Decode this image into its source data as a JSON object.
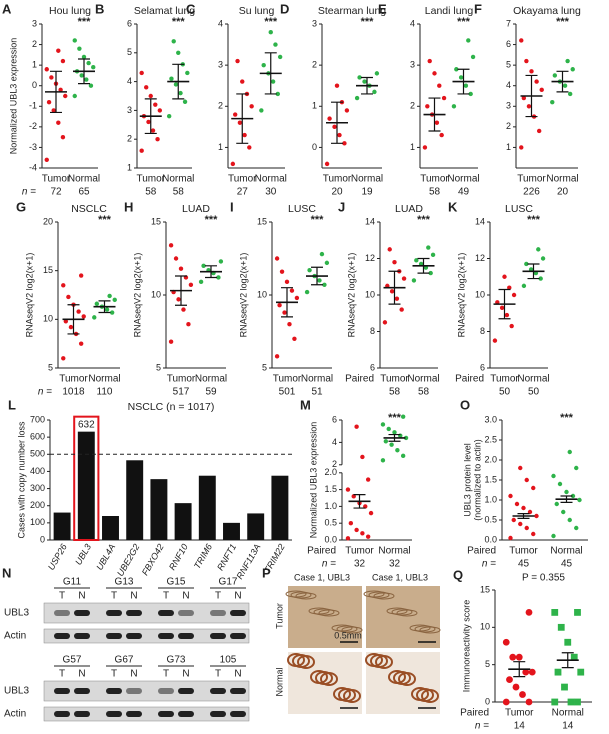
{
  "chart_data": [
    {
      "type": "dotplot",
      "panel": "A",
      "title": "Hou lung",
      "ylabel": "Normalized UBL3 expression",
      "ylim": [
        -4,
        3
      ],
      "yticks": [
        -4,
        -3,
        -2,
        -1,
        0,
        1,
        2,
        3
      ],
      "significance": "***",
      "n_prefix": "n =",
      "groups": [
        {
          "name": "Tumor",
          "color": "#e3141c",
          "n": 72,
          "mean": -0.3,
          "error": 1.0,
          "values": [
            -3.6,
            -2.5,
            -1.8,
            -1.2,
            -0.8,
            -0.5,
            -0.2,
            0.1,
            0.4,
            0.8,
            1.2,
            1.7
          ]
        },
        {
          "name": "Normal",
          "color": "#2eb34a",
          "n": 65,
          "mean": 0.7,
          "error": 0.6,
          "values": [
            -0.5,
            0,
            0.3,
            0.5,
            0.7,
            0.9,
            1.1,
            1.4,
            1.8,
            2.2
          ]
        }
      ]
    },
    {
      "type": "dotplot",
      "panel": "B",
      "title": "Selamat lung",
      "ylim": [
        1,
        6
      ],
      "yticks": [
        1,
        2,
        3,
        4,
        5,
        6
      ],
      "significance": "***",
      "groups": [
        {
          "name": "Tumor",
          "color": "#e3141c",
          "n": 58,
          "mean": 2.8,
          "error": 0.6,
          "values": [
            1.6,
            2,
            2.3,
            2.6,
            2.8,
            3,
            3.2,
            3.5,
            3.8,
            4.3
          ]
        },
        {
          "name": "Normal",
          "color": "#2eb34a",
          "n": 58,
          "mean": 4.0,
          "error": 0.6,
          "values": [
            2.8,
            3.3,
            3.6,
            3.9,
            4.1,
            4.3,
            4.6,
            5,
            5.4
          ]
        }
      ]
    },
    {
      "type": "dotplot",
      "panel": "C",
      "title": "Su lung",
      "ylim": [
        0.5,
        4
      ],
      "yticks": [
        1,
        2,
        3,
        4
      ],
      "significance": "***",
      "groups": [
        {
          "name": "Tumor",
          "color": "#e3141c",
          "n": 27,
          "mean": 1.7,
          "error": 0.6,
          "values": [
            0.6,
            1,
            1.3,
            1.6,
            1.8,
            2,
            2.3,
            2.6,
            3.1
          ]
        },
        {
          "name": "Normal",
          "color": "#2eb34a",
          "n": 30,
          "mean": 2.8,
          "error": 0.5,
          "values": [
            1.9,
            2.3,
            2.6,
            2.8,
            3,
            3.2,
            3.5,
            3.8
          ]
        }
      ]
    },
    {
      "type": "dotplot",
      "panel": "D",
      "title": "Stearman lung",
      "ylim": [
        -0.5,
        3
      ],
      "yticks": [
        0,
        1,
        2,
        3
      ],
      "significance": "***",
      "groups": [
        {
          "name": "Tumor",
          "color": "#e3141c",
          "n": 20,
          "mean": 0.6,
          "error": 0.5,
          "values": [
            -0.4,
            0.1,
            0.3,
            0.5,
            0.7,
            0.9,
            1.1,
            1.5
          ]
        },
        {
          "name": "Normal",
          "color": "#2eb34a",
          "n": 19,
          "mean": 1.5,
          "error": 0.2,
          "values": [
            1.2,
            1.35,
            1.5,
            1.6,
            1.7,
            1.8
          ]
        }
      ]
    },
    {
      "type": "dotplot",
      "panel": "E",
      "title": "Landi lung",
      "ylim": [
        0.5,
        4
      ],
      "yticks": [
        1,
        2,
        3,
        4
      ],
      "significance": "***",
      "groups": [
        {
          "name": "Tumor",
          "color": "#e3141c",
          "n": 58,
          "mean": 1.8,
          "error": 0.4,
          "values": [
            1,
            1.3,
            1.6,
            1.8,
            2,
            2.2,
            2.5,
            2.8,
            3.1
          ]
        },
        {
          "name": "Normal",
          "color": "#2eb34a",
          "n": 49,
          "mean": 2.6,
          "error": 0.3,
          "values": [
            2,
            2.3,
            2.5,
            2.7,
            2.9,
            3.2,
            3.6
          ]
        }
      ]
    },
    {
      "type": "dotplot",
      "panel": "F",
      "title": "Okayama lung",
      "ylim": [
        0,
        7
      ],
      "yticks": [
        1,
        2,
        3,
        4,
        5,
        6,
        7
      ],
      "significance": "***",
      "groups": [
        {
          "name": "Tumor",
          "color": "#e3141c",
          "n": 226,
          "mean": 3.5,
          "error": 1.0,
          "values": [
            1,
            1.8,
            2.5,
            3,
            3.4,
            3.8,
            4.2,
            4.7,
            5.2,
            6.2
          ]
        },
        {
          "name": "Normal",
          "color": "#2eb34a",
          "n": 20,
          "mean": 4.2,
          "error": 0.5,
          "values": [
            3.2,
            3.6,
            4,
            4.2,
            4.5,
            4.8,
            5.2
          ]
        }
      ]
    },
    {
      "type": "dotplot",
      "panel": "G",
      "title": "NSCLC",
      "ylabel": "RNAseqV2 log2(x+1)",
      "ylim": [
        5,
        20
      ],
      "yticks": [
        5,
        10,
        15,
        20
      ],
      "significance": "***",
      "n_prefix": "n =",
      "groups": [
        {
          "name": "Tumor",
          "color": "#e3141c",
          "n": 1018,
          "mean": 10.0,
          "error": 1.5,
          "values": [
            6,
            7.5,
            8.5,
            9.2,
            9.8,
            10.3,
            10.8,
            11.5,
            12.3,
            13.5,
            14.5
          ]
        },
        {
          "name": "Normal",
          "color": "#2eb34a",
          "n": 110,
          "mean": 11.3,
          "error": 0.6,
          "values": [
            10.2,
            10.7,
            11,
            11.3,
            11.6,
            12,
            12.4
          ]
        }
      ]
    },
    {
      "type": "dotplot",
      "panel": "H",
      "title": "LUAD",
      "ylabel": "RNAseqV2 log2(x+1)",
      "ylim": [
        5,
        15
      ],
      "yticks": [
        5,
        10,
        15
      ],
      "significance": "***",
      "groups": [
        {
          "name": "Tumor",
          "color": "#e3141c",
          "n": 517,
          "mean": 10.3,
          "error": 1.0,
          "values": [
            6.8,
            8,
            9,
            9.7,
            10.2,
            10.7,
            11.2,
            11.8,
            12.5,
            13.4
          ]
        },
        {
          "name": "Normal",
          "color": "#2eb34a",
          "n": 59,
          "mean": 11.6,
          "error": 0.4,
          "values": [
            10.9,
            11.2,
            11.5,
            11.7,
            12,
            12.3
          ]
        }
      ]
    },
    {
      "type": "dotplot",
      "panel": "I",
      "title": "LUSC",
      "ylabel": "RNAseqV2 log2(x+1)",
      "ylim": [
        5,
        15
      ],
      "yticks": [
        5,
        10,
        15
      ],
      "significance": "***",
      "groups": [
        {
          "name": "Tumor",
          "color": "#e3141c",
          "n": 501,
          "mean": 9.5,
          "error": 1.0,
          "values": [
            5.8,
            7,
            8,
            8.8,
            9.3,
            9.8,
            10.3,
            10.9,
            11.6,
            12.5
          ]
        },
        {
          "name": "Normal",
          "color": "#2eb34a",
          "n": 51,
          "mean": 11.3,
          "error": 0.6,
          "values": [
            10.2,
            10.7,
            11,
            11.3,
            11.7,
            12.2,
            12.8
          ]
        }
      ]
    },
    {
      "type": "dotplot",
      "panel": "J",
      "title": "LUAD",
      "ylabel": "RNAseqV2 log2(x+1)",
      "ylim": [
        6,
        14
      ],
      "yticks": [
        6,
        8,
        10,
        12,
        14
      ],
      "significance": "***",
      "paired_label": "Paired",
      "groups": [
        {
          "name": "Tumor",
          "color": "#e3141c",
          "n": 58,
          "mean": 10.4,
          "error": 0.9,
          "values": [
            8.5,
            9.2,
            9.8,
            10.2,
            10.5,
            10.9,
            11.3,
            11.8,
            12.5
          ]
        },
        {
          "name": "Normal",
          "color": "#2eb34a",
          "n": 58,
          "mean": 11.6,
          "error": 0.4,
          "values": [
            10.8,
            11.2,
            11.5,
            11.7,
            11.9,
            12.2,
            12.6
          ]
        }
      ]
    },
    {
      "type": "dotplot",
      "panel": "K",
      "title": "LUSC",
      "ylabel": "RNAseqV2 log2(x+1)",
      "ylim": [
        6,
        14
      ],
      "yticks": [
        6,
        8,
        10,
        12,
        14
      ],
      "significance": "***",
      "paired_label": "Paired",
      "groups": [
        {
          "name": "Tumor",
          "color": "#e3141c",
          "n": 50,
          "mean": 9.5,
          "error": 0.8,
          "values": [
            7.5,
            8.3,
            8.9,
            9.3,
            9.6,
            10,
            10.4,
            11
          ]
        },
        {
          "name": "Normal",
          "color": "#2eb34a",
          "n": 50,
          "mean": 11.3,
          "error": 0.4,
          "values": [
            10.5,
            10.9,
            11.2,
            11.4,
            11.7,
            12,
            12.5
          ]
        }
      ]
    },
    {
      "type": "bar",
      "panel": "L",
      "title": "NSCLC (n = 1017)",
      "ylabel": "Cases with copy number loss",
      "ylim": [
        0,
        700
      ],
      "yticks": [
        0,
        100,
        200,
        300,
        400,
        500,
        600,
        700
      ],
      "color": "#111111",
      "categories": [
        "USP26",
        "UBL3",
        "UBL4A",
        "UBE2G2",
        "FBXO42",
        "RNF10",
        "TRIM6",
        "RNFT1",
        "RNF113A",
        "TRIM22"
      ],
      "values": [
        160,
        632,
        140,
        465,
        355,
        215,
        375,
        100,
        155,
        375
      ],
      "value_labels": [
        null,
        "632",
        null,
        null,
        null,
        null,
        null,
        null,
        null,
        null
      ],
      "highlight_index": 1,
      "highlight_color": "#e3141c",
      "reference_line": 500
    },
    {
      "type": "dotplot",
      "panel": "M",
      "ylabel": "Normalized UBL3 expression",
      "significance": "***",
      "n_prefix": "n =",
      "paired_label": "Paired",
      "y_segments": [
        {
          "ylim": [
            0,
            2
          ],
          "yticks": [
            {
              "value": 0,
              "label": "0.0"
            },
            0.5,
            {
              "value": 1,
              "label": "1.0"
            },
            1.5,
            {
              "value": 2,
              "label": "2.0"
            }
          ]
        },
        {
          "ylim": [
            2,
            6
          ],
          "yticks": [
            2,
            4,
            6
          ]
        }
      ],
      "groups": [
        {
          "name": "Tumor",
          "color": "#e3141c",
          "n": 32,
          "mean": 1.15,
          "error": 0.2,
          "values": [
            0.05,
            0.1,
            0.2,
            0.3,
            0.5,
            0.8,
            1,
            1.1,
            1.3,
            1.5,
            1.8,
            2.7,
            5.4
          ]
        },
        {
          "name": "Normal",
          "color": "#2eb34a",
          "n": 32,
          "mean": 4.4,
          "error": 0.3,
          "values": [
            2.4,
            2.8,
            3.3,
            3.8,
            4.1,
            4.4,
            4.6,
            4.9,
            5.2,
            5.6,
            6.3
          ]
        }
      ]
    },
    {
      "type": "dotplot",
      "panel": "O",
      "ylabel": [
        "UBL3 protein level",
        "(normalized to actin)"
      ],
      "ylim": [
        0,
        3
      ],
      "significance": "***",
      "n_prefix": "n =",
      "paired_label": "Paired",
      "yticks": [
        {
          "value": 0,
          "label": "0.0"
        },
        0.5,
        {
          "value": 1,
          "label": "1.0"
        },
        1.5,
        {
          "value": 2,
          "label": "2.0"
        },
        2.5,
        {
          "value": 3,
          "label": "3.0"
        }
      ],
      "groups": [
        {
          "name": "Tumor",
          "color": "#e3141c",
          "n": 45,
          "mean": 0.6,
          "error": 0.06,
          "values": [
            0.05,
            0.15,
            0.3,
            0.4,
            0.5,
            0.6,
            0.7,
            0.8,
            0.9,
            1.1,
            1.3,
            1.5,
            1.8
          ]
        },
        {
          "name": "Normal",
          "color": "#2eb34a",
          "n": 45,
          "mean": 1.02,
          "error": 0.08,
          "values": [
            0.1,
            0.3,
            0.5,
            0.7,
            0.9,
            1,
            1.1,
            1.2,
            1.4,
            1.6,
            1.8,
            2.2
          ]
        }
      ]
    },
    {
      "type": "dotplot",
      "panel": "Q",
      "ylabel": "Immunoreactivity score",
      "ylim": [
        0,
        15
      ],
      "yticks": [
        0,
        5,
        10,
        15
      ],
      "annotation": "P = 0.355",
      "n_prefix": "n =",
      "paired_label": "Paired",
      "big_dots": true,
      "groups": [
        {
          "name": "Tumor",
          "color": "#e3141c",
          "n": 14,
          "mean": 4.4,
          "error": 1.0,
          "values": [
            0,
            0,
            1,
            2,
            3,
            4,
            4,
            6,
            6,
            8,
            12
          ]
        },
        {
          "name": "Normal",
          "color": "#2eb34a",
          "n": 14,
          "mean": 5.6,
          "error": 1.0,
          "values": [
            0,
            0,
            0,
            2,
            4,
            4,
            6,
            8,
            10,
            12,
            12
          ]
        }
      ]
    }
  ],
  "blot": {
    "panel": "N",
    "samples": [
      [
        "G11",
        "G13",
        "G15",
        "G17"
      ],
      [
        "G57",
        "G67",
        "G73",
        "105"
      ]
    ],
    "lanes": [
      "T",
      "N"
    ],
    "rows": [
      "UBL3",
      "Actin"
    ]
  },
  "histology": {
    "panel": "P",
    "captions": [
      "Case 1, UBL3",
      "Case 1, UBL3"
    ],
    "rows": [
      "Tumor",
      "Normal"
    ],
    "scale": "0.5mm"
  }
}
